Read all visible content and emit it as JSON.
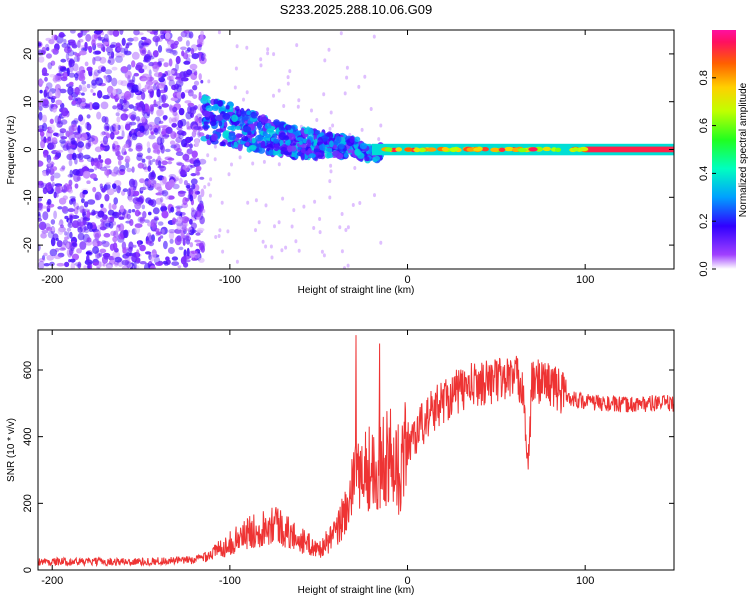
{
  "title": "S233.2025.288.10.06.G09",
  "chart_data": [
    {
      "type": "heatmap",
      "xlabel": "Height of straight line (km)",
      "ylabel": "Frequency (Hz)",
      "xlim": [
        -208,
        150
      ],
      "ylim": [
        -25,
        25
      ],
      "xticks": [
        -200,
        -100,
        0,
        100
      ],
      "yticks": [
        -20,
        -10,
        0,
        10,
        20
      ],
      "colorbar": {
        "label": "Normalized spectral amplitude",
        "range": [
          0,
          1
        ],
        "ticks": [
          0.0,
          0.2,
          0.4,
          0.6,
          0.8
        ]
      },
      "description_of_ridge": [
        {
          "x": -110,
          "y": 6
        },
        {
          "x": -90,
          "y": 4
        },
        {
          "x": -70,
          "y": 2
        },
        {
          "x": -50,
          "y": 1
        },
        {
          "x": -30,
          "y": 0.5
        },
        {
          "x": -20,
          "y": -1
        },
        {
          "x": 0,
          "y": 0.5
        },
        {
          "x": 20,
          "y": 0
        },
        {
          "x": 50,
          "y": 0
        },
        {
          "x": 100,
          "y": 0
        },
        {
          "x": 150,
          "y": 0
        }
      ]
    },
    {
      "type": "line",
      "xlabel": "Height of straight line (km)",
      "ylabel": "SNR (10 * v/v)",
      "xlim": [
        -208,
        150
      ],
      "ylim": [
        0,
        720
      ],
      "xticks": [
        -200,
        -100,
        0,
        100
      ],
      "yticks": [
        0,
        200,
        400,
        600
      ],
      "color": "#ee3333",
      "series": [
        {
          "x": [
            -208,
            -180,
            -150,
            -120,
            -110,
            -100,
            -90,
            -80,
            -75,
            -70,
            -60,
            -50,
            -40,
            -35,
            -30,
            -25,
            -20,
            -15,
            -10,
            -5,
            0,
            10,
            20,
            30,
            40,
            50,
            60,
            65,
            68,
            70,
            75,
            80,
            90,
            100,
            110,
            120,
            130,
            140,
            150
          ],
          "y": [
            25,
            25,
            25,
            30,
            50,
            80,
            110,
            130,
            150,
            120,
            90,
            60,
            110,
            180,
            250,
            320,
            300,
            330,
            350,
            300,
            380,
            450,
            510,
            540,
            560,
            570,
            580,
            560,
            290,
            560,
            570,
            560,
            520,
            505,
            500,
            495,
            498,
            500,
            500
          ]
        }
      ]
    }
  ]
}
